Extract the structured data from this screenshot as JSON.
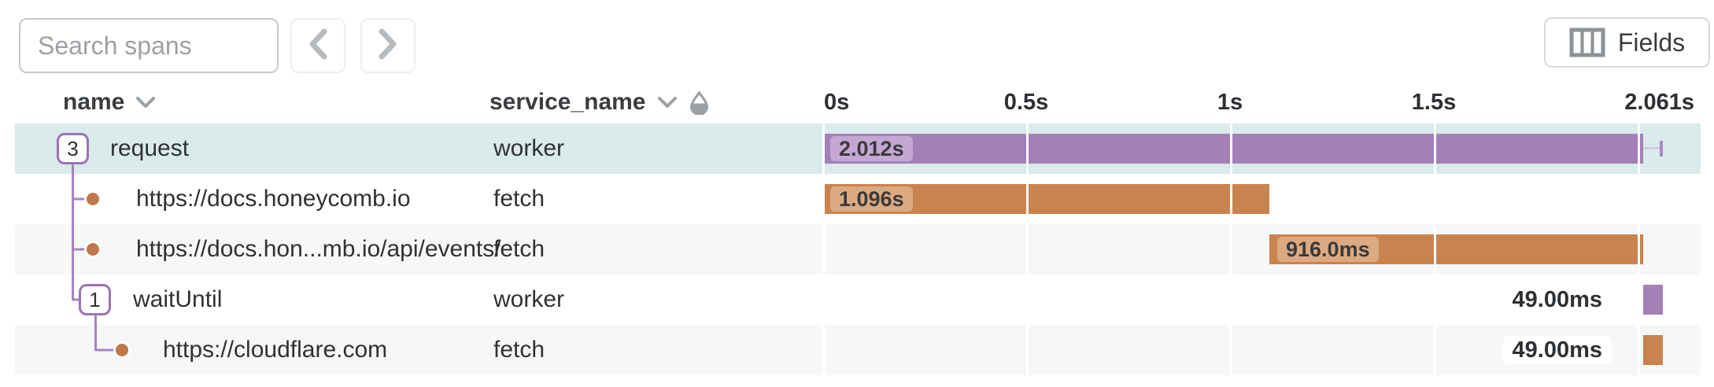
{
  "toolbar": {
    "search_placeholder": "Search spans",
    "fields_label": "Fields"
  },
  "header": {
    "name_column": "name",
    "service_column": "service_name"
  },
  "timeline": {
    "axis_max_s": 2.061,
    "gridline_interval_s": 0.5,
    "ticks": [
      {
        "label": "0s",
        "t": 0,
        "align": "left"
      },
      {
        "label": "0.5s",
        "t": 0.5,
        "align": "center"
      },
      {
        "label": "1s",
        "t": 1,
        "align": "center"
      },
      {
        "label": "1.5s",
        "t": 1.5,
        "align": "center"
      },
      {
        "label": "2.061s",
        "t": 2.061,
        "align": "right"
      }
    ]
  },
  "rows": [
    {
      "badge": "3",
      "name": "request",
      "service": "worker",
      "duration_label": "2.012s",
      "start_s": 0,
      "duration_s": 2.012,
      "color": "purple",
      "selected": true,
      "whisker_end_s": 2.061,
      "label_outside": false
    },
    {
      "badge": "",
      "name": "https://docs.honeycomb.io",
      "service": "fetch",
      "duration_label": "1.096s",
      "start_s": 0,
      "duration_s": 1.096,
      "color": "orange",
      "selected": false,
      "label_outside": false
    },
    {
      "badge": "",
      "name": "https://docs.hon...mb.io/api/events/",
      "service": "fetch",
      "duration_label": "916.0ms",
      "start_s": 1.096,
      "duration_s": 0.916,
      "color": "orange",
      "selected": false,
      "label_outside": false
    },
    {
      "badge": "1",
      "name": "waitUntil",
      "service": "worker",
      "duration_label": "49.00ms",
      "start_s": 2.012,
      "duration_s": 0.049,
      "color": "purple",
      "selected": false,
      "label_outside": true
    },
    {
      "badge": "",
      "name": "https://cloudflare.com",
      "service": "fetch",
      "duration_label": "49.00ms",
      "start_s": 2.012,
      "duration_s": 0.049,
      "color": "orange",
      "selected": false,
      "label_outside": true
    }
  ],
  "colors": {
    "purple_bar": "#a380b6",
    "orange_bar": "#c8834f",
    "selected_row_bg": "#d9ebea",
    "alt_row_bg": "#f6f7f7"
  }
}
